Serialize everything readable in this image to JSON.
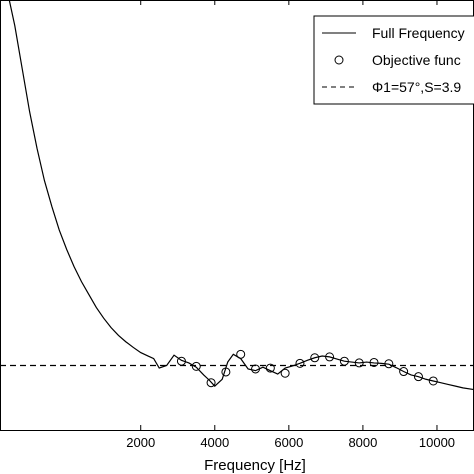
{
  "chart_data": {
    "type": "line",
    "xlabel": "Frequency [Hz]",
    "ylabel": "",
    "xlim": [
      -1800,
      11000
    ],
    "ylim": [
      0,
      10
    ],
    "xticks": [
      2000,
      4000,
      6000,
      8000,
      10000
    ],
    "xtick_labels": [
      "2000",
      "4000",
      "6000",
      "8000",
      "10000"
    ],
    "grid": false,
    "legend_position": "top-right",
    "legend": {
      "entries": [
        {
          "label": "Full Frequency",
          "style": "solid-line"
        },
        {
          "label": "Objective func",
          "style": "circle-marker"
        },
        {
          "label": "Φ1=57°,S=3.9",
          "style": "dashed-line"
        }
      ]
    },
    "series": [
      {
        "name": "Full Frequency",
        "style": "solid",
        "color": "#000000",
        "x": [
          -1600,
          -1400,
          -1200,
          -1000,
          -800,
          -600,
          -400,
          -200,
          0,
          200,
          400,
          600,
          800,
          1000,
          1200,
          1400,
          1600,
          1800,
          2000,
          2200,
          2350,
          2500,
          2700,
          2900,
          3100,
          3300,
          3500,
          3700,
          3850,
          4000,
          4200,
          4350,
          4500,
          4700,
          4900,
          5100,
          5300,
          5500,
          5700,
          5900,
          6100,
          6300,
          6500,
          6700,
          6900,
          7100,
          7300,
          7500,
          7700,
          7900,
          8100,
          8300,
          8500,
          8700,
          8900,
          9100,
          9300,
          9500,
          9700,
          9900,
          10100,
          10300,
          10500,
          10700,
          11000
        ],
        "y": [
          10.2,
          9.4,
          8.4,
          7.4,
          6.55,
          5.8,
          5.2,
          4.65,
          4.2,
          3.8,
          3.45,
          3.15,
          2.85,
          2.6,
          2.38,
          2.2,
          2.05,
          1.92,
          1.8,
          1.72,
          1.66,
          1.44,
          1.5,
          1.74,
          1.62,
          1.56,
          1.46,
          1.28,
          1.16,
          1.02,
          1.18,
          1.58,
          1.76,
          1.66,
          1.42,
          1.38,
          1.46,
          1.38,
          1.3,
          1.44,
          1.49,
          1.55,
          1.62,
          1.68,
          1.72,
          1.7,
          1.65,
          1.6,
          1.58,
          1.56,
          1.58,
          1.56,
          1.55,
          1.53,
          1.45,
          1.36,
          1.28,
          1.24,
          1.18,
          1.14,
          1.1,
          1.06,
          1.02,
          0.98,
          0.94
        ]
      },
      {
        "name": "Objective func",
        "style": "markers",
        "marker": "circle",
        "color": "#000000",
        "x": [
          3100,
          3500,
          3900,
          4300,
          4700,
          5100,
          5500,
          5900,
          6300,
          6700,
          7100,
          7500,
          7900,
          8300,
          8700,
          9100,
          9500,
          9900
        ],
        "y": [
          1.6,
          1.48,
          1.1,
          1.35,
          1.76,
          1.42,
          1.44,
          1.32,
          1.55,
          1.68,
          1.7,
          1.6,
          1.56,
          1.57,
          1.54,
          1.36,
          1.24,
          1.14
        ]
      },
      {
        "name": "Φ1=57°,S=3.9",
        "style": "dashed",
        "color": "#000000",
        "x": [
          -1800,
          11000
        ],
        "y": [
          1.5,
          1.5
        ]
      }
    ]
  }
}
